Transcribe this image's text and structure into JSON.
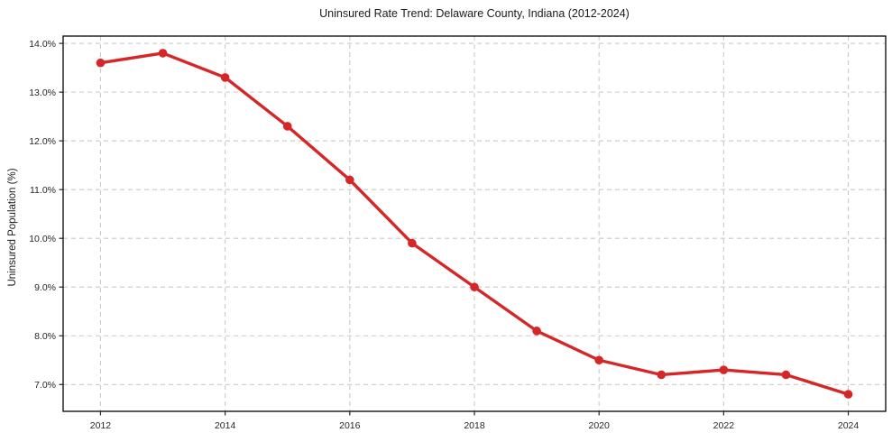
{
  "chart_data": {
    "type": "line",
    "title": "Uninsured Rate Trend: Delaware County, Indiana (2012-2024)",
    "xlabel": "",
    "ylabel": "Uninsured Population (%)",
    "x": [
      2012,
      2013,
      2014,
      2015,
      2016,
      2017,
      2018,
      2019,
      2020,
      2021,
      2022,
      2023,
      2024
    ],
    "values": [
      13.6,
      13.8,
      13.3,
      12.3,
      11.2,
      9.9,
      9.0,
      8.1,
      7.5,
      7.2,
      7.3,
      7.2,
      6.8
    ],
    "x_ticks": [
      2012,
      2014,
      2016,
      2018,
      2020,
      2022,
      2024
    ],
    "x_tick_labels": [
      "2012",
      "2014",
      "2016",
      "2018",
      "2020",
      "2022",
      "2024"
    ],
    "y_ticks": [
      7.0,
      8.0,
      9.0,
      10.0,
      11.0,
      12.0,
      13.0,
      14.0
    ],
    "y_tick_labels": [
      "7.0%",
      "8.0%",
      "9.0%",
      "10.0%",
      "11.0%",
      "12.0%",
      "13.0%",
      "14.0%"
    ],
    "xlim": [
      2011.4,
      2024.6
    ],
    "ylim": [
      6.45,
      14.15
    ],
    "grid": true,
    "grid_style": "dashed",
    "legend": "none",
    "marker": "circle",
    "line_color": "#d62728",
    "grid_color": "#c9c9c9",
    "spine_color": "#000000",
    "tick_color": "#262626",
    "background": "#ffffff"
  }
}
